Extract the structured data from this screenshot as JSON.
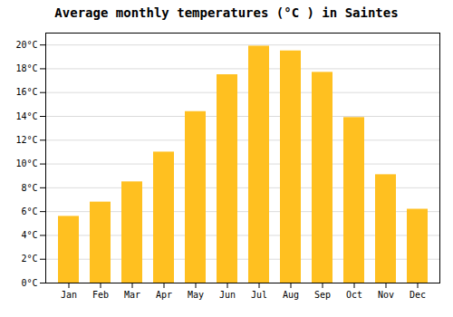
{
  "chart_data": {
    "type": "bar",
    "title": "Average monthly temperatures (°C ) in Saintes",
    "categories": [
      "Jan",
      "Feb",
      "Mar",
      "Apr",
      "May",
      "Jun",
      "Jul",
      "Aug",
      "Sep",
      "Oct",
      "Nov",
      "Dec"
    ],
    "values": [
      5.6,
      6.8,
      8.5,
      11.0,
      14.4,
      17.5,
      19.9,
      19.5,
      17.7,
      13.9,
      9.1,
      6.2
    ],
    "color": "#FFC020",
    "ylim": [
      0,
      21
    ],
    "yticks": [
      {
        "value": 0,
        "label": "0°C"
      },
      {
        "value": 2,
        "label": "2°C"
      },
      {
        "value": 4,
        "label": "4°C"
      },
      {
        "value": 6,
        "label": "6°C"
      },
      {
        "value": 8,
        "label": "8°C"
      },
      {
        "value": 10,
        "label": "10°C"
      },
      {
        "value": 12,
        "label": "12°C"
      },
      {
        "value": 14,
        "label": "14°C"
      },
      {
        "value": 16,
        "label": "16°C"
      },
      {
        "value": 18,
        "label": "18°C"
      },
      {
        "value": 20,
        "label": "20°C"
      }
    ],
    "grid": true
  }
}
